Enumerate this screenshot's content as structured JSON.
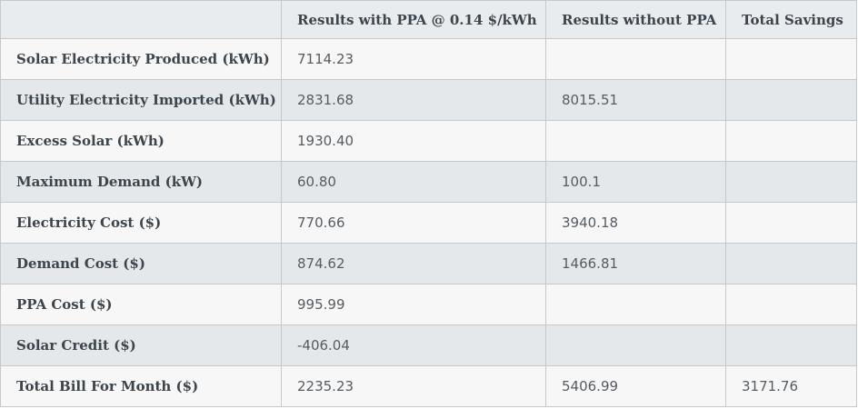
{
  "table": {
    "headers": [
      "",
      "Results with PPA @ 0.14 $/kWh",
      "Results without PPA",
      "Total Savings"
    ],
    "rows": [
      {
        "label": "Solar Electricity Produced (kWh)",
        "with_ppa": "7114.23",
        "without_ppa": "",
        "savings": ""
      },
      {
        "label": "Utility Electricity Imported (kWh)",
        "with_ppa": "2831.68",
        "without_ppa": "8015.51",
        "savings": ""
      },
      {
        "label": "Excess Solar (kWh)",
        "with_ppa": "1930.40",
        "without_ppa": "",
        "savings": ""
      },
      {
        "label": "Maximum Demand (kW)",
        "with_ppa": "60.80",
        "without_ppa": "100.1",
        "savings": ""
      },
      {
        "label": "Electricity Cost ($)",
        "with_ppa": "770.66",
        "without_ppa": "3940.18",
        "savings": ""
      },
      {
        "label": "Demand Cost ($)",
        "with_ppa": "874.62",
        "without_ppa": "1466.81",
        "savings": ""
      },
      {
        "label": "PPA Cost ($)",
        "with_ppa": "995.99",
        "without_ppa": "",
        "savings": ""
      },
      {
        "label": "Solar Credit ($)",
        "with_ppa": "-406.04",
        "without_ppa": "",
        "savings": ""
      },
      {
        "label": "Total Bill For Month ($)",
        "with_ppa": "2235.23",
        "without_ppa": "5406.99",
        "savings": "3171.76"
      }
    ]
  }
}
